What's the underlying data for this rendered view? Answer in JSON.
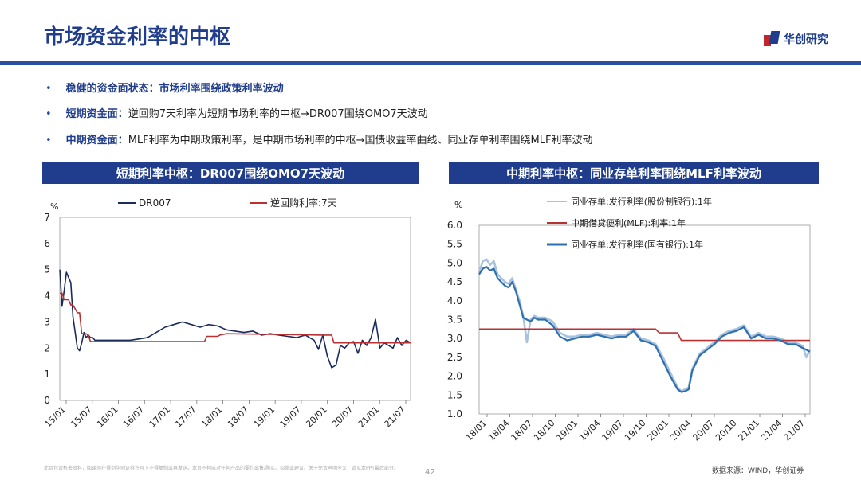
{
  "header": {
    "title": "市场资金利率的中枢",
    "logo_text": "华创研究"
  },
  "bullets": [
    {
      "bold": "稳健的资金面状态：市场利率围绕政策利率波动",
      "text": ""
    },
    {
      "bold": "短期资金面：",
      "text": "逆回购7天利率为短期市场利率的中枢→DR007围绕OMO7天波动"
    },
    {
      "bold": "中期资金面：",
      "text": "MLF利率为中期政策利率，是中期市场利率的中枢→国债收益率曲线、同业存单利率围绕MLF利率波动"
    }
  ],
  "chart_data": [
    {
      "type": "line",
      "panel_title": "短期利率中枢：DR007围绕OMO7天波动",
      "ylabel": "%",
      "ylim": [
        0,
        7
      ],
      "yticks": [
        "0",
        "1",
        "2",
        "3",
        "4",
        "5",
        "6",
        "7"
      ],
      "x_ticks": [
        "15/01",
        "15/07",
        "16/01",
        "16/07",
        "17/01",
        "17/07",
        "18/01",
        "18/07",
        "19/01",
        "19/07",
        "20/01",
        "20/07",
        "21/01",
        "21/07"
      ],
      "xlim_months": [
        0,
        80
      ],
      "series": [
        {
          "name": "DR007",
          "color": "#1a2a5a",
          "x": [
            0,
            0.5,
            1,
            1.5,
            2,
            2.5,
            3,
            3.5,
            4,
            4.5,
            5,
            5.5,
            6,
            6.5,
            7,
            7.5,
            8,
            9,
            10,
            11,
            12,
            14,
            16,
            18,
            20,
            22,
            24,
            26,
            28,
            30,
            32,
            34,
            36,
            38,
            40,
            42,
            44,
            46,
            48,
            50,
            52,
            54,
            56,
            58,
            59,
            60,
            61,
            62,
            63,
            64,
            65,
            66,
            67,
            68,
            69,
            70,
            71,
            72,
            73,
            74,
            75,
            76,
            77,
            78,
            79,
            80
          ],
          "y": [
            5.0,
            3.6,
            4.2,
            4.9,
            4.7,
            4.5,
            3.2,
            2.6,
            2.0,
            1.9,
            2.2,
            2.6,
            2.4,
            2.5,
            2.4,
            2.4,
            2.3,
            2.3,
            2.3,
            2.3,
            2.3,
            2.3,
            2.3,
            2.35,
            2.4,
            2.6,
            2.8,
            2.9,
            3.0,
            2.9,
            2.8,
            2.9,
            2.85,
            2.7,
            2.65,
            2.6,
            2.65,
            2.5,
            2.55,
            2.5,
            2.45,
            2.4,
            2.5,
            2.3,
            1.95,
            2.5,
            1.7,
            1.25,
            1.35,
            2.1,
            2.0,
            2.2,
            2.25,
            1.8,
            2.3,
            2.1,
            2.4,
            3.1,
            2.0,
            2.2,
            2.1,
            2.0,
            2.4,
            2.1,
            2.3,
            2.2
          ]
        },
        {
          "name": "逆回购利率:7天",
          "color": "#b83232",
          "x": [
            0,
            0.5,
            1,
            2,
            2.5,
            3,
            4,
            4.5,
            5,
            6,
            6.5,
            7,
            9,
            33,
            33.5,
            36,
            36.5,
            38,
            60,
            62,
            62.5,
            80
          ],
          "y": [
            4.1,
            4.1,
            3.85,
            3.85,
            3.65,
            3.65,
            3.35,
            3.35,
            2.55,
            2.55,
            2.5,
            2.25,
            2.25,
            2.25,
            2.45,
            2.45,
            2.5,
            2.55,
            2.5,
            2.5,
            2.2,
            2.2
          ]
        }
      ]
    },
    {
      "type": "line",
      "panel_title": "中期利率中枢：同业存单利率围绕MLF利率波动",
      "ylabel": "%",
      "ylim": [
        1.0,
        6.0
      ],
      "yticks": [
        "1.0",
        "1.5",
        "2.0",
        "2.5",
        "3.0",
        "3.5",
        "4.0",
        "4.5",
        "5.0",
        "5.5",
        "6.0"
      ],
      "x_ticks": [
        "18/01",
        "18/04",
        "18/07",
        "18/10",
        "19/01",
        "19/04",
        "19/07",
        "19/10",
        "20/01",
        "20/04",
        "20/07",
        "20/10",
        "21/01",
        "21/04",
        "21/07"
      ],
      "xlim_months": [
        0,
        45
      ],
      "series": [
        {
          "name": "同业存单:发行利率(股份制银行):1年",
          "color": "#a9c2df",
          "x": [
            0,
            0.5,
            1,
            1.5,
            2,
            2.5,
            3,
            3.5,
            4,
            4.5,
            5,
            5.5,
            6,
            6.5,
            7,
            7.5,
            8,
            9,
            10,
            11,
            12,
            13,
            14,
            15,
            16,
            17,
            18,
            19,
            20,
            21,
            22,
            23,
            24,
            25,
            26,
            27,
            27.5,
            28,
            28.5,
            29,
            30,
            31,
            32,
            33,
            34,
            35,
            36,
            37,
            38,
            39,
            40,
            41,
            42,
            43,
            44,
            44.5,
            45
          ],
          "y": [
            4.75,
            5.05,
            5.1,
            4.95,
            5.05,
            4.7,
            4.6,
            4.5,
            4.45,
            4.6,
            4.3,
            4.0,
            3.6,
            2.9,
            3.5,
            3.6,
            3.55,
            3.55,
            3.45,
            3.15,
            3.05,
            3.05,
            3.1,
            3.1,
            3.15,
            3.1,
            3.05,
            3.1,
            3.1,
            3.25,
            3.0,
            2.95,
            2.85,
            2.5,
            2.1,
            1.7,
            1.6,
            1.65,
            1.7,
            2.2,
            2.6,
            2.75,
            2.9,
            3.1,
            3.2,
            3.25,
            3.35,
            3.05,
            3.15,
            3.05,
            3.05,
            3.0,
            2.9,
            2.9,
            2.8,
            2.5,
            2.7
          ]
        },
        {
          "name": "中期借贷便利(MLF):利率:1年",
          "color": "#b83232",
          "x": [
            0,
            24,
            24.5,
            27,
            27.5,
            45
          ],
          "y": [
            3.25,
            3.25,
            3.15,
            3.15,
            2.95,
            2.95
          ]
        },
        {
          "name": "同业存单:发行利率(国有银行):1年",
          "color": "#2e6fb0",
          "x": [
            0,
            0.5,
            1,
            1.5,
            2,
            2.5,
            3,
            3.5,
            4,
            4.5,
            5,
            5.5,
            6,
            6.5,
            7,
            7.5,
            8,
            9,
            10,
            11,
            12,
            13,
            14,
            15,
            16,
            17,
            18,
            19,
            20,
            21,
            22,
            23,
            24,
            25,
            26,
            27,
            27.5,
            28,
            28.5,
            29,
            30,
            31,
            32,
            33,
            34,
            35,
            36,
            37,
            38,
            39,
            40,
            41,
            42,
            43,
            44,
            44.5,
            45
          ],
          "y": [
            4.7,
            4.85,
            4.9,
            4.8,
            4.85,
            4.6,
            4.5,
            4.4,
            4.35,
            4.5,
            4.25,
            3.9,
            3.55,
            3.5,
            3.45,
            3.55,
            3.5,
            3.5,
            3.35,
            3.05,
            2.95,
            3.0,
            3.05,
            3.05,
            3.1,
            3.05,
            3.0,
            3.05,
            3.05,
            3.2,
            2.95,
            2.9,
            2.8,
            2.4,
            2.0,
            1.65,
            1.58,
            1.6,
            1.65,
            2.15,
            2.55,
            2.7,
            2.85,
            3.05,
            3.15,
            3.2,
            3.3,
            3.0,
            3.1,
            3.0,
            3.0,
            2.95,
            2.85,
            2.85,
            2.75,
            2.7,
            2.65
          ]
        }
      ]
    }
  ],
  "footer": {
    "disclaimer": "此页包含机密资料，阅读须在得到华创证券许可下不得复制或再发送。本页不构成对任何产品的要约出售/购买、招揽或建议。关于免责声明全文，请见本PPT最后部分。",
    "page_number": "42",
    "source": "数据来源：WIND，华创证券"
  },
  "colors": {
    "brand_blue": "#1f3d8c",
    "rule_blue": "#2b4ea0"
  }
}
